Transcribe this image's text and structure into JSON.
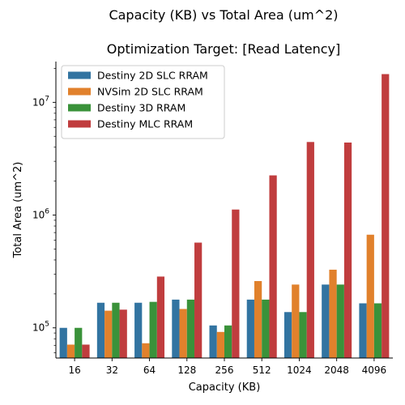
{
  "chart_data": {
    "type": "bar",
    "suptitle": "Capacity (KB) vs Total Area (um^2)",
    "title": "Optimization Target: [Read Latency]",
    "xlabel": "Capacity (KB)",
    "ylabel": "Total Area (um^2)",
    "yscale": "log",
    "ylim": [
      54000,
      23000000
    ],
    "yticks": [
      {
        "value": 100000,
        "label": "10^5"
      },
      {
        "value": 1000000,
        "label": "10^6"
      },
      {
        "value": 10000000,
        "label": "10^7"
      }
    ],
    "legend_position": "top-left",
    "categories": [
      "16",
      "32",
      "64",
      "128",
      "256",
      "512",
      "1024",
      "2048",
      "4096"
    ],
    "series": [
      {
        "name": "Destiny 2D SLC RRAM",
        "color": "#3274a1",
        "values": [
          100000,
          167000,
          167000,
          178000,
          105000,
          178000,
          138000,
          242000,
          165000
        ]
      },
      {
        "name": "NVSim 2D SLC RRAM",
        "color": "#e1812c",
        "values": [
          71000,
          142000,
          73000,
          147000,
          92000,
          260000,
          242000,
          328000,
          670000
        ]
      },
      {
        "name": "Destiny 3D RRAM",
        "color": "#3a923a",
        "values": [
          100000,
          167000,
          170000,
          178000,
          105000,
          178000,
          138000,
          242000,
          165000
        ]
      },
      {
        "name": "Destiny MLC RRAM",
        "color": "#c03d3e",
        "values": [
          71000,
          145000,
          285000,
          570000,
          1120000,
          2250000,
          4450000,
          4400000,
          17800000
        ]
      }
    ]
  }
}
